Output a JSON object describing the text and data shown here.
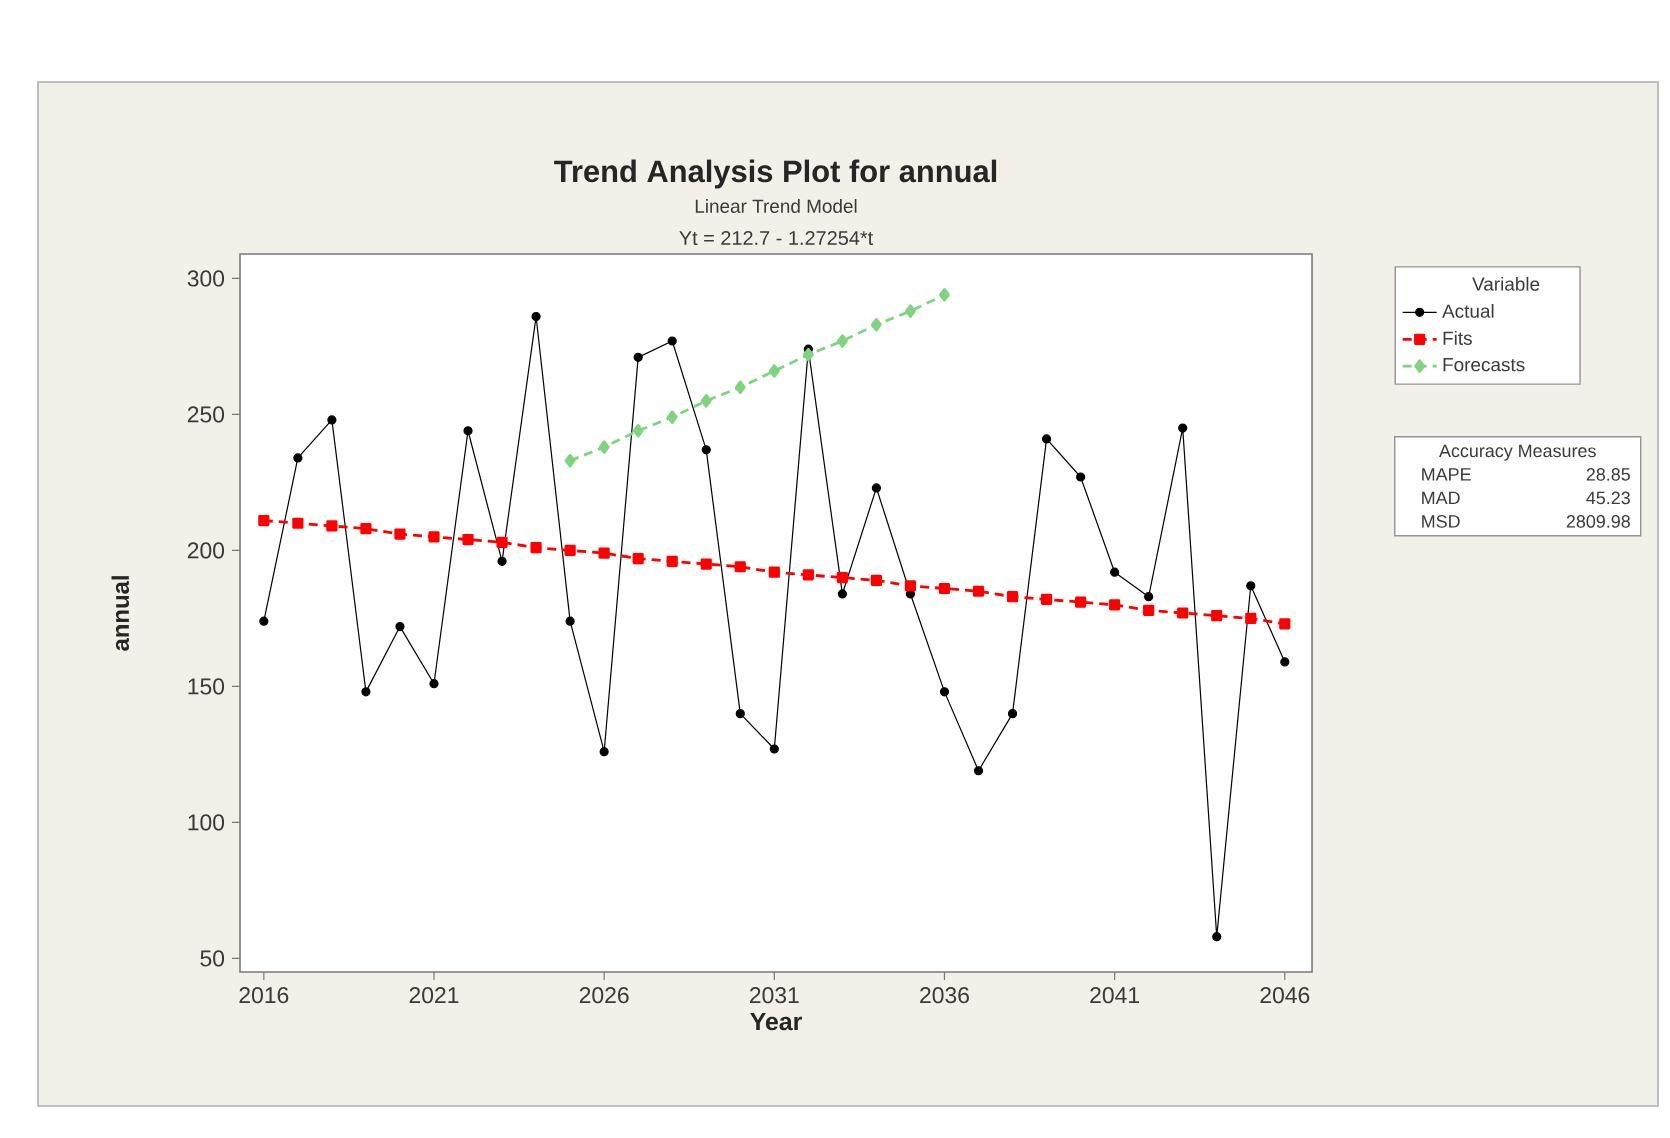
{
  "chart_data": {
    "type": "line",
    "title": "Trend Analysis Plot for annual",
    "subtitle": "Linear Trend Model",
    "xlabel": "Year",
    "ylabel": "annual",
    "legend_title": "Variable",
    "annotations": [
      "Yt = 212.7 - 1.27254*t",
      "Accuracy Measures",
      "MAPE",
      "28.85",
      "MAD",
      "45.23",
      "MSD",
      "2809.98"
    ],
    "x": [
      2016,
      2017,
      2018,
      2019,
      2020,
      2021,
      2022,
      2023,
      2024,
      2025,
      2026,
      2027,
      2028,
      2029,
      2030,
      2031,
      2032,
      2033,
      2034,
      2035,
      2036,
      2037,
      2038,
      2039,
      2040,
      2041,
      2042,
      2043,
      2044,
      2045,
      2046
    ],
    "series": [
      {
        "name": "Actual",
        "color": "#000000",
        "marker": "circle",
        "line_style": "solid",
        "values": [
          174,
          234,
          248,
          148,
          172,
          151,
          244,
          196,
          286,
          174,
          126,
          271,
          277,
          237,
          140,
          127,
          274,
          184,
          223,
          184,
          148,
          119,
          140,
          241,
          227,
          192,
          183,
          245,
          58,
          187,
          159
        ]
      },
      {
        "name": "Fits",
        "color": "#ff0000",
        "marker": "square",
        "line_style": "dashed",
        "values": [
          211,
          210,
          209,
          208,
          206,
          205,
          204,
          203,
          201,
          200,
          199,
          197,
          196,
          195,
          194,
          192,
          191,
          190,
          189,
          187,
          186,
          185,
          183,
          182,
          181,
          180,
          178,
          177,
          176,
          175,
          173
        ]
      },
      {
        "name": "Forecasts",
        "color": "#7fd47f",
        "marker": "diamond",
        "line_style": "dashed",
        "x": [
          2025,
          2026,
          2027,
          2028,
          2029,
          2030,
          2031,
          2032,
          2033,
          2034,
          2035,
          2036
        ],
        "values": [
          233,
          238,
          244,
          249,
          255,
          260,
          266,
          272,
          277,
          283,
          288,
          294
        ]
      }
    ],
    "xlim": [
      2015.3,
      2046.8
    ],
    "ylim": [
      45,
      309
    ],
    "xticks": [
      2016,
      2021,
      2026,
      2031,
      2036,
      2041,
      2046
    ],
    "yticks": [
      50,
      100,
      150,
      200,
      250,
      300
    ],
    "legend": "right"
  }
}
